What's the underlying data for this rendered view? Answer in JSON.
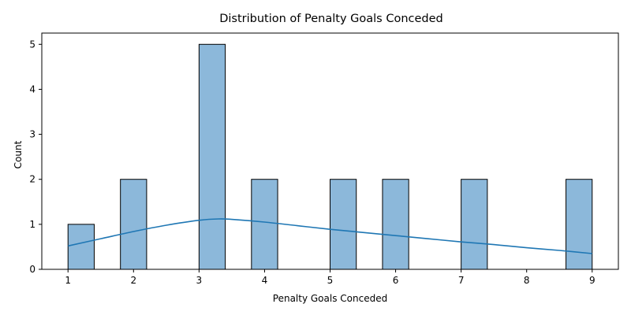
{
  "chart_data": {
    "type": "bar",
    "title": "Distribution of Penalty Goals Conceded",
    "xlabel": "Penalty Goals Conceded",
    "ylabel": "Count",
    "xlim": [
      0.6,
      9.4
    ],
    "ylim": [
      0,
      5.25
    ],
    "xticks": [
      "1",
      "2",
      "3",
      "4",
      "5",
      "6",
      "7",
      "8",
      "9"
    ],
    "yticks": [
      "0",
      "1",
      "2",
      "3",
      "4",
      "5"
    ],
    "grid": false,
    "bars": [
      {
        "x0": 1.0,
        "x1": 1.4,
        "count": 1
      },
      {
        "x0": 1.8,
        "x1": 2.2,
        "count": 2
      },
      {
        "x0": 3.0,
        "x1": 3.4,
        "count": 5
      },
      {
        "x0": 3.8,
        "x1": 4.2,
        "count": 2
      },
      {
        "x0": 5.0,
        "x1": 5.4,
        "count": 2
      },
      {
        "x0": 5.8,
        "x1": 6.2,
        "count": 2
      },
      {
        "x0": 7.0,
        "x1": 7.4,
        "count": 2
      },
      {
        "x0": 8.6,
        "x1": 9.0,
        "count": 2
      }
    ],
    "kde": {
      "x": [
        1.0,
        1.5,
        2.0,
        2.5,
        3.0,
        3.3,
        3.5,
        4.0,
        4.5,
        5.0,
        5.5,
        6.0,
        6.5,
        7.0,
        7.5,
        8.0,
        8.5,
        9.0
      ],
      "y": [
        0.52,
        0.68,
        0.84,
        0.98,
        1.09,
        1.12,
        1.11,
        1.05,
        0.97,
        0.89,
        0.82,
        0.75,
        0.68,
        0.61,
        0.55,
        0.48,
        0.42,
        0.35
      ]
    },
    "colors": {
      "bar_fill": "#8cb8da",
      "bar_edge": "#000000",
      "kde_line": "#1f77b4"
    }
  }
}
